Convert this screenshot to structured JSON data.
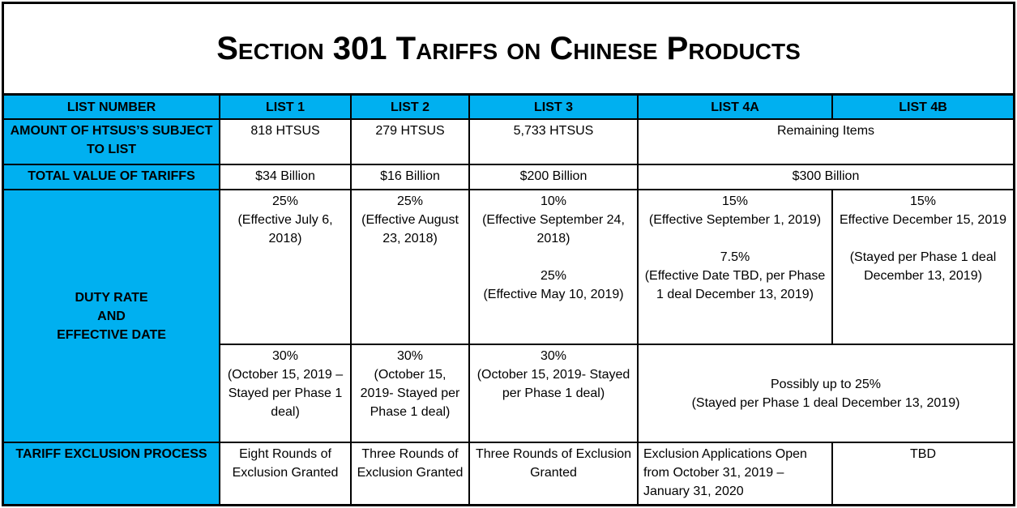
{
  "title": "Section 301 Tariffs on Chinese Products",
  "header": [
    "LIST NUMBER",
    "LIST 1",
    "LIST 2",
    "LIST 3",
    "LIST 4A",
    "LIST 4B"
  ],
  "amount": {
    "label": [
      [
        "AMOUNT OF HTSUS’S SUBJECT TO LIST"
      ]
    ],
    "list_1": [
      [
        "818 HTSUS"
      ]
    ],
    "list_2": [
      [
        "279 HTSUS"
      ]
    ],
    "list_3": [
      [
        "5,733 HTSUS"
      ]
    ],
    "list_4": [
      [
        "Remaining Items"
      ]
    ]
  },
  "value": {
    "label": [
      [
        "TOTAL VALUE OF TARIFFS"
      ]
    ],
    "list_1": [
      [
        "$34 Billion"
      ]
    ],
    "list_2": [
      [
        "$16 Billion"
      ]
    ],
    "list_3": [
      [
        "$200 Billion"
      ]
    ],
    "list_4": [
      [
        "$300 Billion"
      ]
    ]
  },
  "duty": {
    "label": [
      [
        "DUTY RATE",
        "AND",
        "EFFECTIVE DATE"
      ]
    ],
    "first": {
      "list_1": [
        [
          "25%",
          "(Effective July 6, 2018)"
        ]
      ],
      "list_2": [
        [
          "25%",
          "(Effective August 23, 2018)"
        ]
      ],
      "list_3": [
        [
          "10%",
          "(Effective September 24, 2018)"
        ],
        [
          "25%",
          "(Effective May 10, 2019)"
        ]
      ],
      "list_4a": [
        [
          "15%",
          "(Effective September 1, 2019)"
        ],
        [
          "7.5%",
          "(Effective Date TBD, per Phase 1 deal December 13, 2019)"
        ]
      ],
      "list_4b": [
        [
          "15%",
          "Effective December 15, 2019"
        ],
        [
          "(Stayed per Phase 1 deal December 13, 2019)"
        ]
      ]
    },
    "second": {
      "list_1": [
        [
          "30%",
          "(October 15, 2019 – Stayed per Phase 1 deal)"
        ]
      ],
      "list_2": [
        [
          "30%",
          "(October 15, 2019- Stayed per Phase 1 deal)"
        ]
      ],
      "list_3": [
        [
          "30%",
          "(October 15, 2019- Stayed per Phase 1 deal)"
        ]
      ],
      "list_4": [
        [
          "Possibly up to 25%",
          "(Stayed per Phase 1 deal December 13, 2019)"
        ]
      ]
    }
  },
  "exclusion": {
    "label": [
      [
        "TARIFF EXCLUSION PROCESS"
      ]
    ],
    "list_1": [
      [
        "Eight Rounds of Exclusion Granted"
      ]
    ],
    "list_2": [
      [
        "Three Rounds of Exclusion Granted"
      ]
    ],
    "list_3": [
      [
        "Three Rounds of Exclusion Granted"
      ]
    ],
    "list_4a": [
      [
        "Exclusion Applications Open from October 31, 2019 – January 31, 2020"
      ]
    ],
    "list_4b": [
      [
        "TBD"
      ]
    ]
  }
}
